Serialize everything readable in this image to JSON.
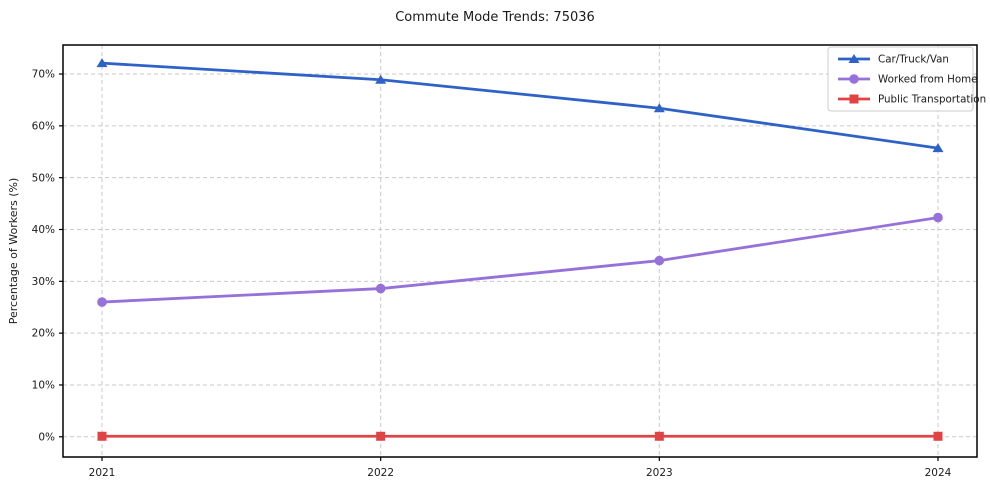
{
  "chart_data": {
    "type": "line",
    "title": "Commute Mode Trends: 75036",
    "xlabel": "",
    "ylabel": "Percentage of Workers (%)",
    "categories": [
      "2021",
      "2022",
      "2023",
      "2024"
    ],
    "x_values": [
      2021,
      2022,
      2023,
      2024
    ],
    "series": [
      {
        "name": "Car/Truck/Van",
        "values": [
          72.1,
          68.9,
          63.4,
          55.7
        ],
        "color": "#2e62c6",
        "marker": "triangle"
      },
      {
        "name": "Worked from Home",
        "values": [
          26.0,
          28.6,
          34.0,
          42.3
        ],
        "color": "#9571d9",
        "marker": "circle"
      },
      {
        "name": "Public Transportation",
        "values": [
          0.1,
          0.1,
          0.1,
          0.1
        ],
        "color": "#e04343",
        "marker": "square"
      }
    ],
    "ytick_values": [
      0,
      10,
      20,
      30,
      40,
      50,
      60,
      70
    ],
    "ytick_labels": [
      "0%",
      "10%",
      "20%",
      "30%",
      "40%",
      "50%",
      "60%",
      "70%"
    ],
    "xlim": [
      2020.86,
      2024.14
    ],
    "ylim": [
      -3.9,
      75.6
    ],
    "grid": true,
    "grid_style": "dashed",
    "legend_position": "upper right"
  },
  "colors": {
    "background": "#ffffff",
    "grid": "#c9c9c9",
    "spine": "#000000",
    "text": "#1a1a1a",
    "legend_border": "#cccccc",
    "legend_background": "#ffffff"
  }
}
